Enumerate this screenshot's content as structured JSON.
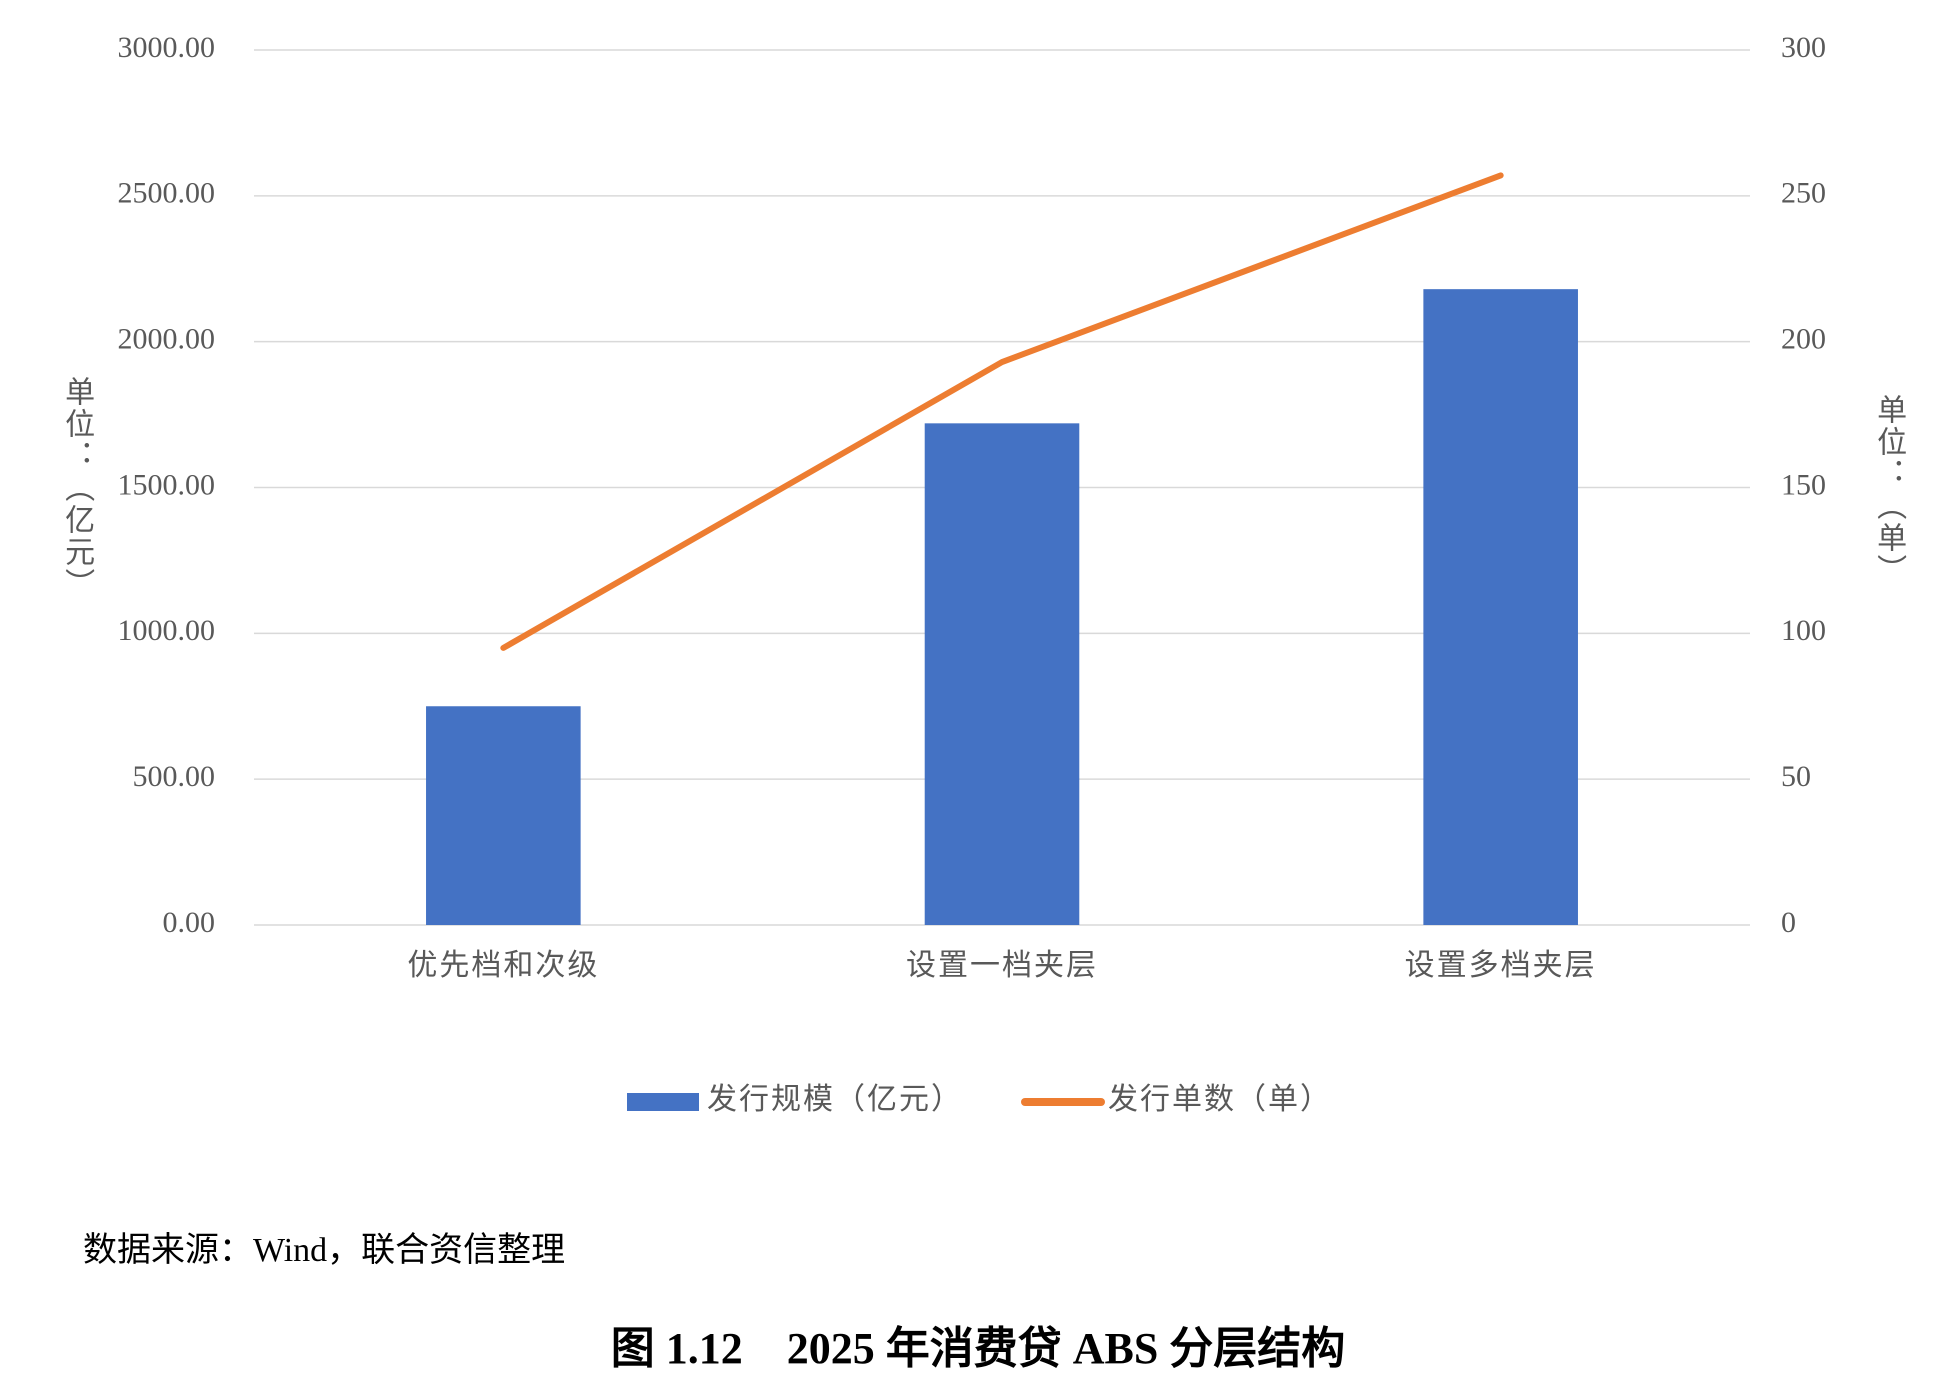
{
  "chart_data": {
    "type": "combo",
    "categories": [
      "优先档和次级",
      "设置一档夹层",
      "设置多档夹层"
    ],
    "series": [
      {
        "name": "发行规模（亿元）",
        "type": "bar",
        "color": "#4472c4",
        "axis": "y",
        "values": [
          750,
          1720,
          2180
        ]
      },
      {
        "name": "发行单数（单）",
        "type": "line",
        "color": "#ed7d31",
        "axis": "y2",
        "values": [
          95,
          193,
          257
        ]
      }
    ],
    "ylabel": "单位：（亿元）",
    "y2label": "单位：（单）",
    "ylim": [
      0,
      3000
    ],
    "yticks": [
      {
        "value": 0,
        "label": "0.00"
      },
      {
        "value": 500,
        "label": "500.00"
      },
      {
        "value": 1000,
        "label": "1000.00"
      },
      {
        "value": 1500,
        "label": "1500.00"
      },
      {
        "value": 2000,
        "label": "2000.00"
      },
      {
        "value": 2500,
        "label": "2500.00"
      },
      {
        "value": 3000,
        "label": "3000.00"
      }
    ],
    "y2lim": [
      0,
      300
    ],
    "y2ticks": [
      0,
      50,
      100,
      150,
      200,
      250,
      300
    ],
    "grid": true,
    "legend": "bottom",
    "source": "数据来源：Wind，联合资信整理",
    "caption": "图 1.12　2025 年消费贷 ABS 分层结构"
  }
}
